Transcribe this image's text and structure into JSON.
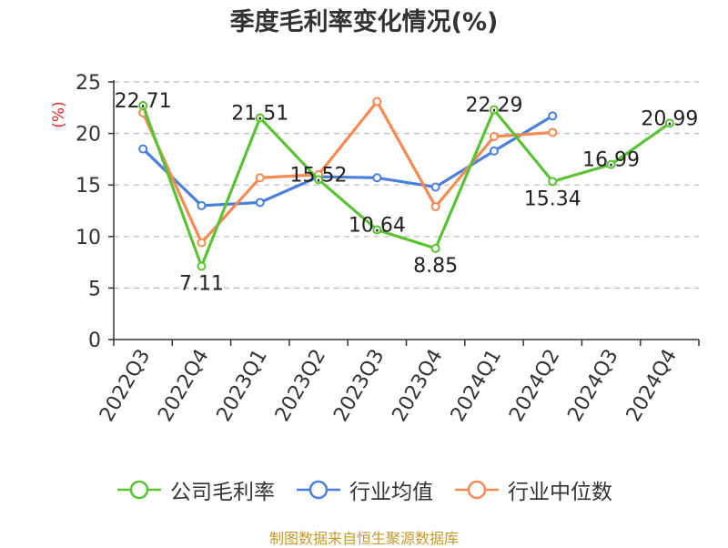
{
  "chart_data": {
    "type": "line",
    "title": "季度毛利率变化情况(%)",
    "ylabel": "(%)",
    "xlabel": "",
    "ylim": [
      0,
      25
    ],
    "yticks": [
      0,
      5,
      10,
      15,
      20,
      25
    ],
    "grid": true,
    "legend_position": "bottom",
    "categories": [
      "2022Q3",
      "2022Q4",
      "2023Q1",
      "2023Q2",
      "2023Q3",
      "2023Q4",
      "2024Q1",
      "2024Q2",
      "2024Q3",
      "2024Q4"
    ],
    "series": [
      {
        "name": "公司毛利率",
        "color": "#5bc236",
        "values": [
          22.71,
          7.11,
          21.51,
          15.52,
          10.64,
          8.85,
          22.29,
          15.34,
          16.99,
          20.99
        ],
        "labels": [
          "22.71",
          "7.11",
          "21.51",
          "15.52",
          "10.64",
          "8.85",
          "22.29",
          "15.34",
          "16.99",
          "20.99"
        ]
      },
      {
        "name": "行业均值",
        "color": "#4a7fdc",
        "values": [
          18.5,
          13.0,
          13.3,
          15.8,
          15.7,
          14.8,
          18.3,
          21.7,
          null,
          null
        ]
      },
      {
        "name": "行业中位数",
        "color": "#f58a52",
        "values": [
          22.0,
          9.4,
          15.7,
          16.0,
          23.1,
          12.9,
          19.7,
          20.1,
          null,
          null
        ]
      }
    ]
  },
  "source": "制图数据来自恒生聚源数据库"
}
